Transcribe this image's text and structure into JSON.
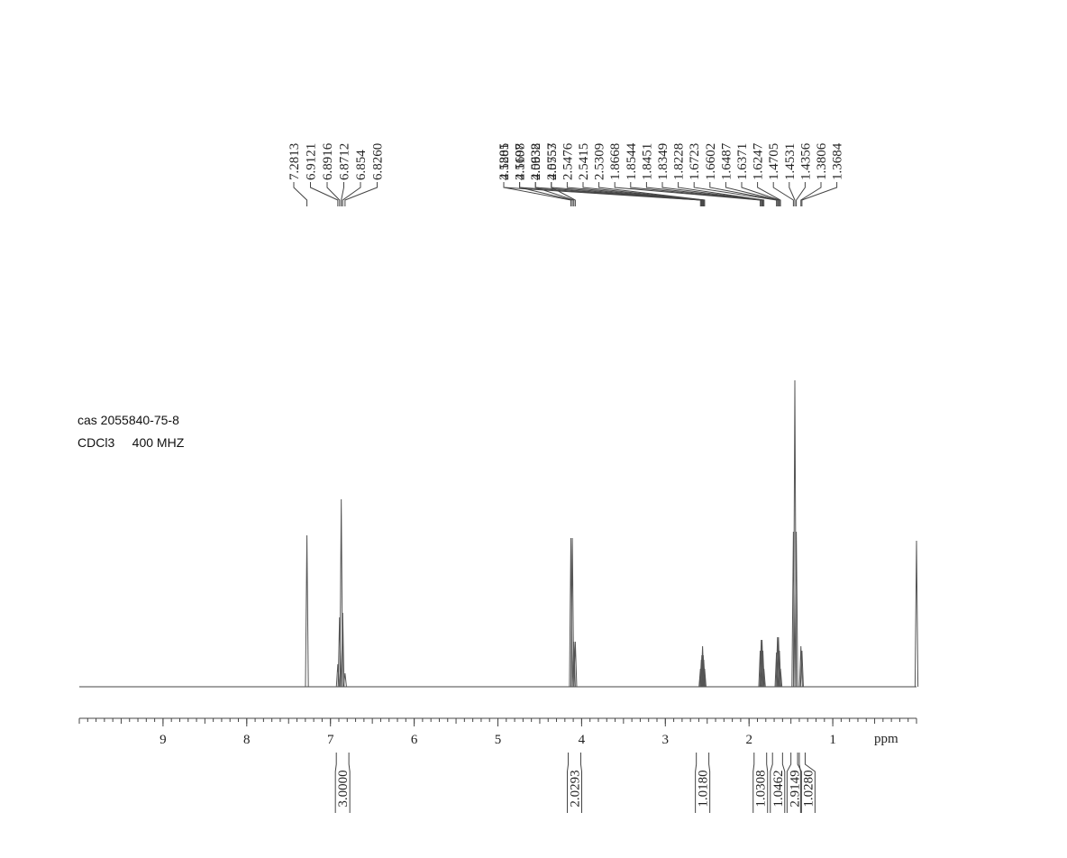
{
  "chart_data": {
    "type": "nmr",
    "notes": [
      "cas 2055840-75-8",
      "CDCl3     400 MHZ"
    ],
    "xlabel": "ppm",
    "xlim": [
      10,
      0
    ],
    "xticks": [
      9,
      8,
      7,
      6,
      5,
      4,
      3,
      2,
      1
    ],
    "ylim": [
      0,
      350
    ],
    "color": "#555555",
    "peak_labels": [
      7.2813,
      6.9121,
      6.8916,
      6.8712,
      6.854,
      {
        "value": 6.826,
        "label": "6.8260"
      },
      4.1281,
      4.1107,
      4.0932,
      4.0757,
      2.5805,
      2.5698,
      2.5638,
      2.5553,
      2.5476,
      2.5415,
      2.5309,
      1.8668,
      1.8544,
      1.8451,
      1.8349,
      1.8228,
      1.6723,
      1.6602,
      1.6487,
      1.6371,
      1.6247,
      1.4705,
      1.4531,
      1.4356,
      1.3806,
      1.3684
    ],
    "peaks": {
      "x": [
        7.2813,
        6.9121,
        6.8916,
        6.8712,
        6.854,
        6.826,
        4.1281,
        4.1107,
        4.0932,
        4.0757,
        2.5805,
        2.5698,
        2.5638,
        2.5553,
        2.5476,
        2.5415,
        2.5309,
        1.8668,
        1.8544,
        1.8451,
        1.8349,
        1.8228,
        1.6723,
        1.6602,
        1.6487,
        1.6371,
        1.6247,
        1.4705,
        1.4531,
        1.4356,
        1.3806,
        1.3684,
        0
      ],
      "values": [
        168,
        25,
        77,
        208,
        82,
        15,
        165,
        165,
        50,
        50,
        20,
        30,
        35,
        45,
        35,
        30,
        20,
        40,
        52,
        52,
        40,
        20,
        38,
        55,
        55,
        40,
        20,
        172,
        340,
        172,
        45,
        40,
        162
      ]
    },
    "integrals": {
      "ranges": [
        [
          6.93,
          6.78
        ],
        [
          4.16,
          4.01
        ],
        [
          2.63,
          2.48
        ],
        [
          1.94,
          1.79
        ],
        [
          1.72,
          1.6
        ],
        [
          1.5,
          1.42
        ],
        [
          1.4,
          1.33
        ]
      ],
      "values": [
        3,
        2.0293,
        1.018,
        1.0308,
        1.0462,
        2.9149,
        1.028
      ],
      "value_labels": [
        "3.0000",
        "2.0293",
        "1.0180",
        "1.0308",
        "1.0462",
        "2.9149",
        "1.0280"
      ]
    }
  }
}
